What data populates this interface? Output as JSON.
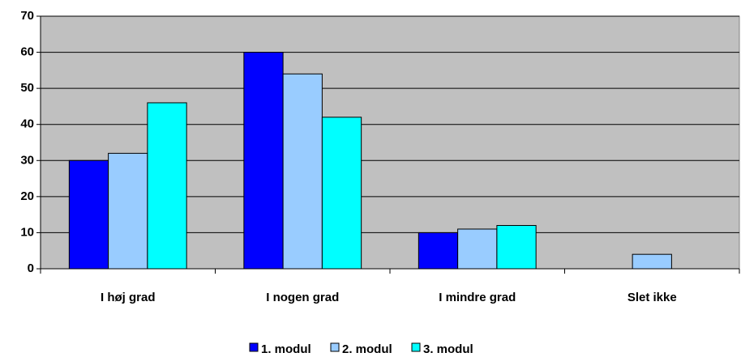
{
  "chart_data": {
    "type": "bar",
    "categories": [
      "I høj grad",
      "I nogen grad",
      "I mindre grad",
      "Slet ikke"
    ],
    "series": [
      {
        "name": "1. modul",
        "color": "#0000ff",
        "values": [
          30,
          60,
          10,
          0
        ]
      },
      {
        "name": "2. modul",
        "color": "#99ccff",
        "values": [
          32,
          54,
          11,
          4
        ]
      },
      {
        "name": "3. modul",
        "color": "#00ffff",
        "values": [
          46,
          42,
          12,
          0
        ]
      }
    ],
    "ylim": [
      0,
      70
    ],
    "yticks": [
      0,
      10,
      20,
      30,
      40,
      50,
      60,
      70
    ],
    "grid": true,
    "legend": "bottom"
  }
}
